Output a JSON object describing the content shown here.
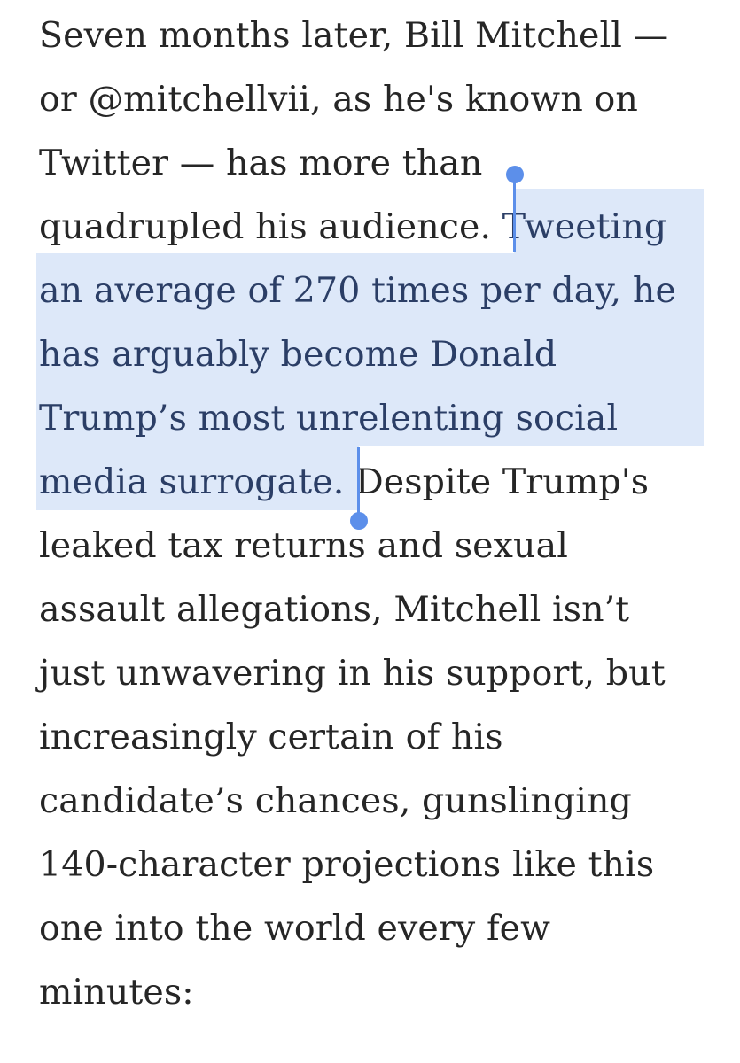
{
  "article": {
    "lines": [
      {
        "before": "Seven months later, Bill Mitchell —",
        "selected": "",
        "after": ""
      },
      {
        "before": "or @mitchellvii, as he's known on",
        "selected": "",
        "after": ""
      },
      {
        "before": "Twitter — has more than",
        "selected": "",
        "after": ""
      },
      {
        "before": "quadrupled his audience. ",
        "selected": "Tweeting",
        "after": ""
      },
      {
        "before": "",
        "selected": "an average of 270 times per day, he",
        "after": ""
      },
      {
        "before": "",
        "selected": "has arguably become Donald",
        "after": ""
      },
      {
        "before": "",
        "selected": "Trump’s most unrelenting social",
        "after": ""
      },
      {
        "before": "",
        "selected": "media surrogate.",
        "after": " Despite Trump's"
      },
      {
        "before": "leaked tax returns and sexual",
        "selected": "",
        "after": ""
      },
      {
        "before": "assault allegations, Mitchell isn’t",
        "selected": "",
        "after": ""
      },
      {
        "before": "just unwavering in his support, but",
        "selected": "",
        "after": ""
      },
      {
        "before": "increasingly certain of his",
        "selected": "",
        "after": ""
      },
      {
        "before": "candidate’s chances, gunslinging",
        "selected": "",
        "after": ""
      },
      {
        "before": "140-character projections like this",
        "selected": "",
        "after": ""
      },
      {
        "before": "one into the world every few",
        "selected": "",
        "after": ""
      },
      {
        "before": "minutes:",
        "selected": "",
        "after": ""
      }
    ]
  },
  "selection": {
    "highlight_color": "#dde8f9",
    "handle_color": "#5c8fea"
  }
}
